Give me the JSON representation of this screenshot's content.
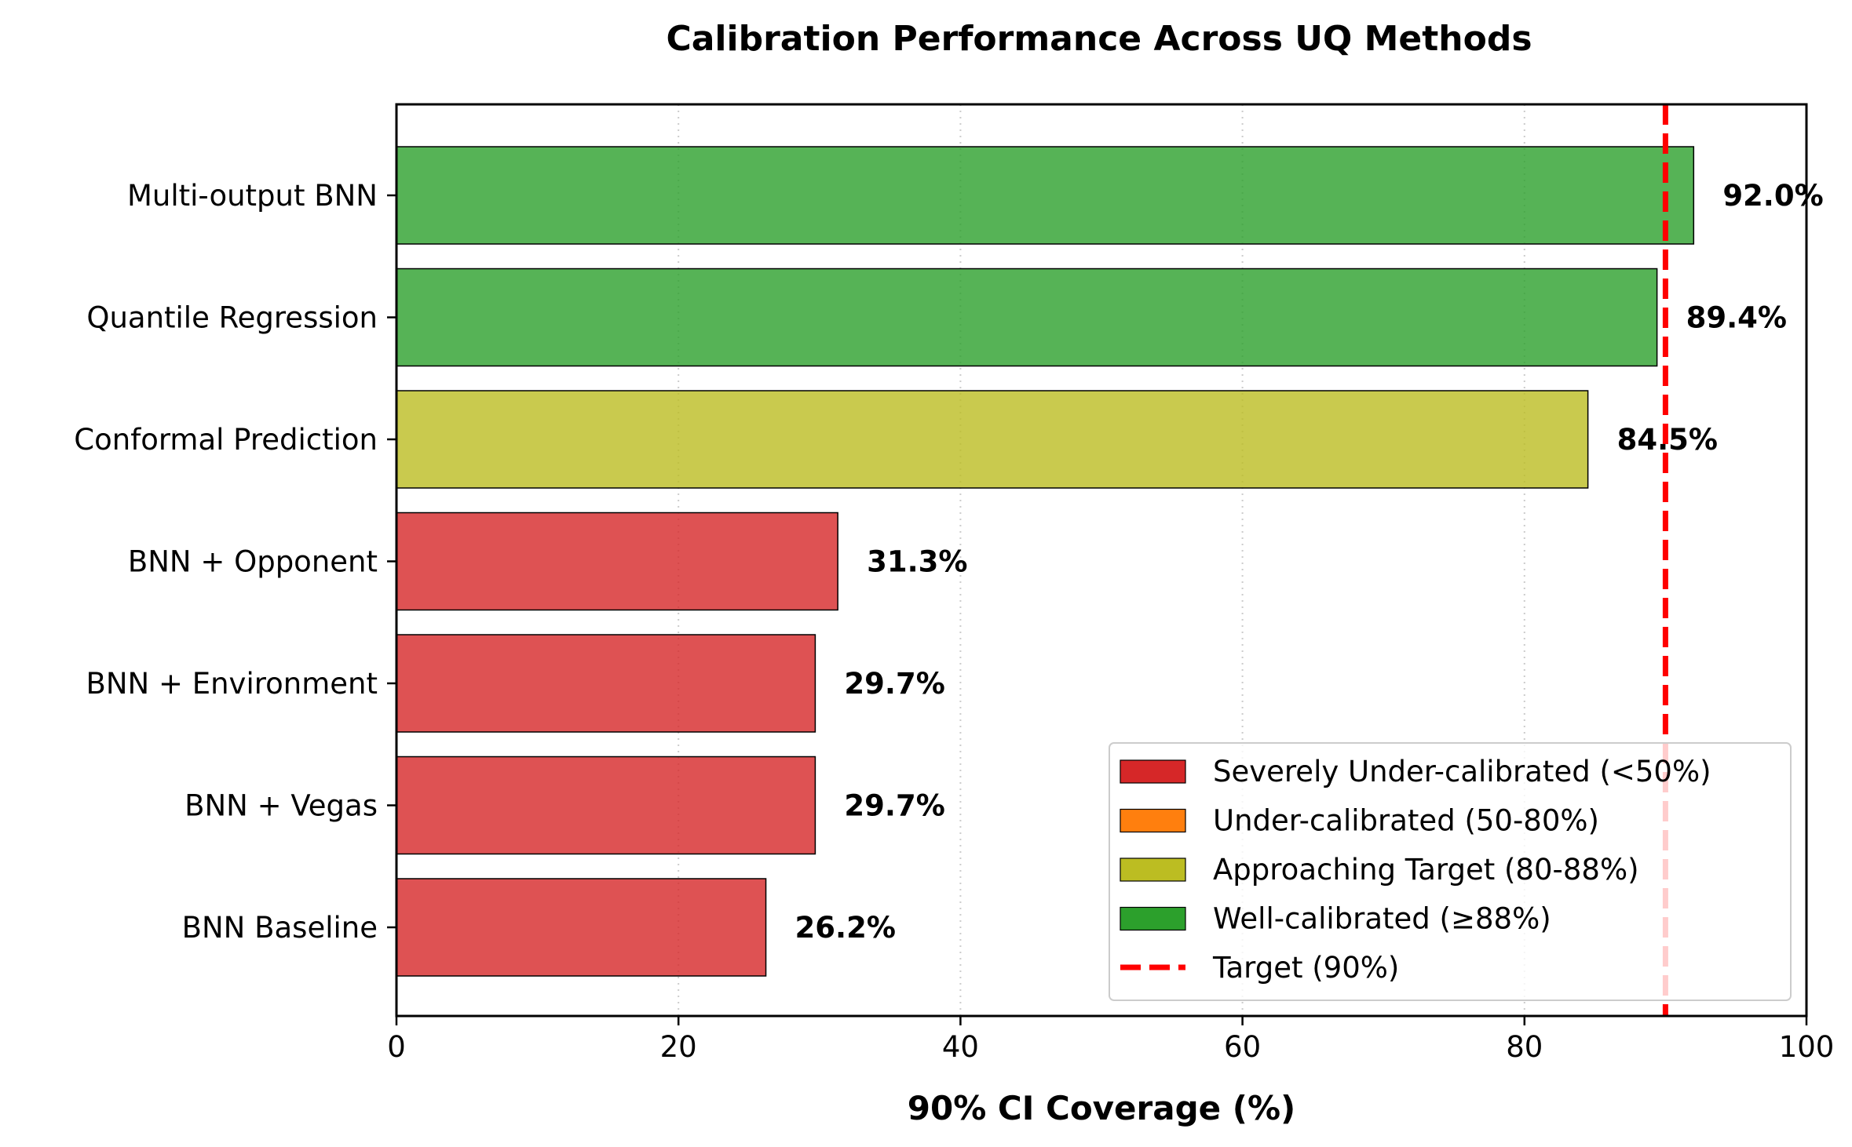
{
  "chart_data": {
    "type": "bar",
    "orientation": "horizontal",
    "title": "Calibration Performance Across UQ Methods",
    "xlabel": "90% CI Coverage (%)",
    "ylabel": "",
    "xlim": [
      0,
      100
    ],
    "xticks": [
      0,
      20,
      40,
      60,
      80,
      100
    ],
    "grid": "x, dotted",
    "categories": [
      "BNN Baseline",
      "BNN + Vegas",
      "BNN + Environment",
      "BNN + Opponent",
      "Conformal Prediction",
      "Quantile Regression",
      "Multi-output BNN"
    ],
    "values": [
      26.2,
      29.7,
      29.7,
      31.3,
      84.5,
      89.4,
      92.0
    ],
    "value_labels": [
      "26.2%",
      "29.7%",
      "29.7%",
      "31.3%",
      "84.5%",
      "89.4%",
      "92.0%"
    ],
    "bar_colors": [
      "#d62728",
      "#d62728",
      "#d62728",
      "#d62728",
      "#bcbd22",
      "#2ca02c",
      "#2ca02c"
    ],
    "reference_line": {
      "x": 90,
      "label": "Target (90%)",
      "color": "#ff0000",
      "style": "dashed"
    },
    "legend": {
      "placement": "lower-right",
      "entries": [
        {
          "label": "Severely Under-calibrated (<50%)",
          "color": "#d62728"
        },
        {
          "label": "Under-calibrated (50-80%)",
          "color": "#ff7f0e"
        },
        {
          "label": "Approaching Target (80-88%)",
          "color": "#bcbd22"
        },
        {
          "label": "Well-calibrated (≥88%)",
          "color": "#2ca02c"
        },
        {
          "label": "Target (90%)",
          "color": "#ff0000",
          "line": true
        }
      ]
    }
  }
}
